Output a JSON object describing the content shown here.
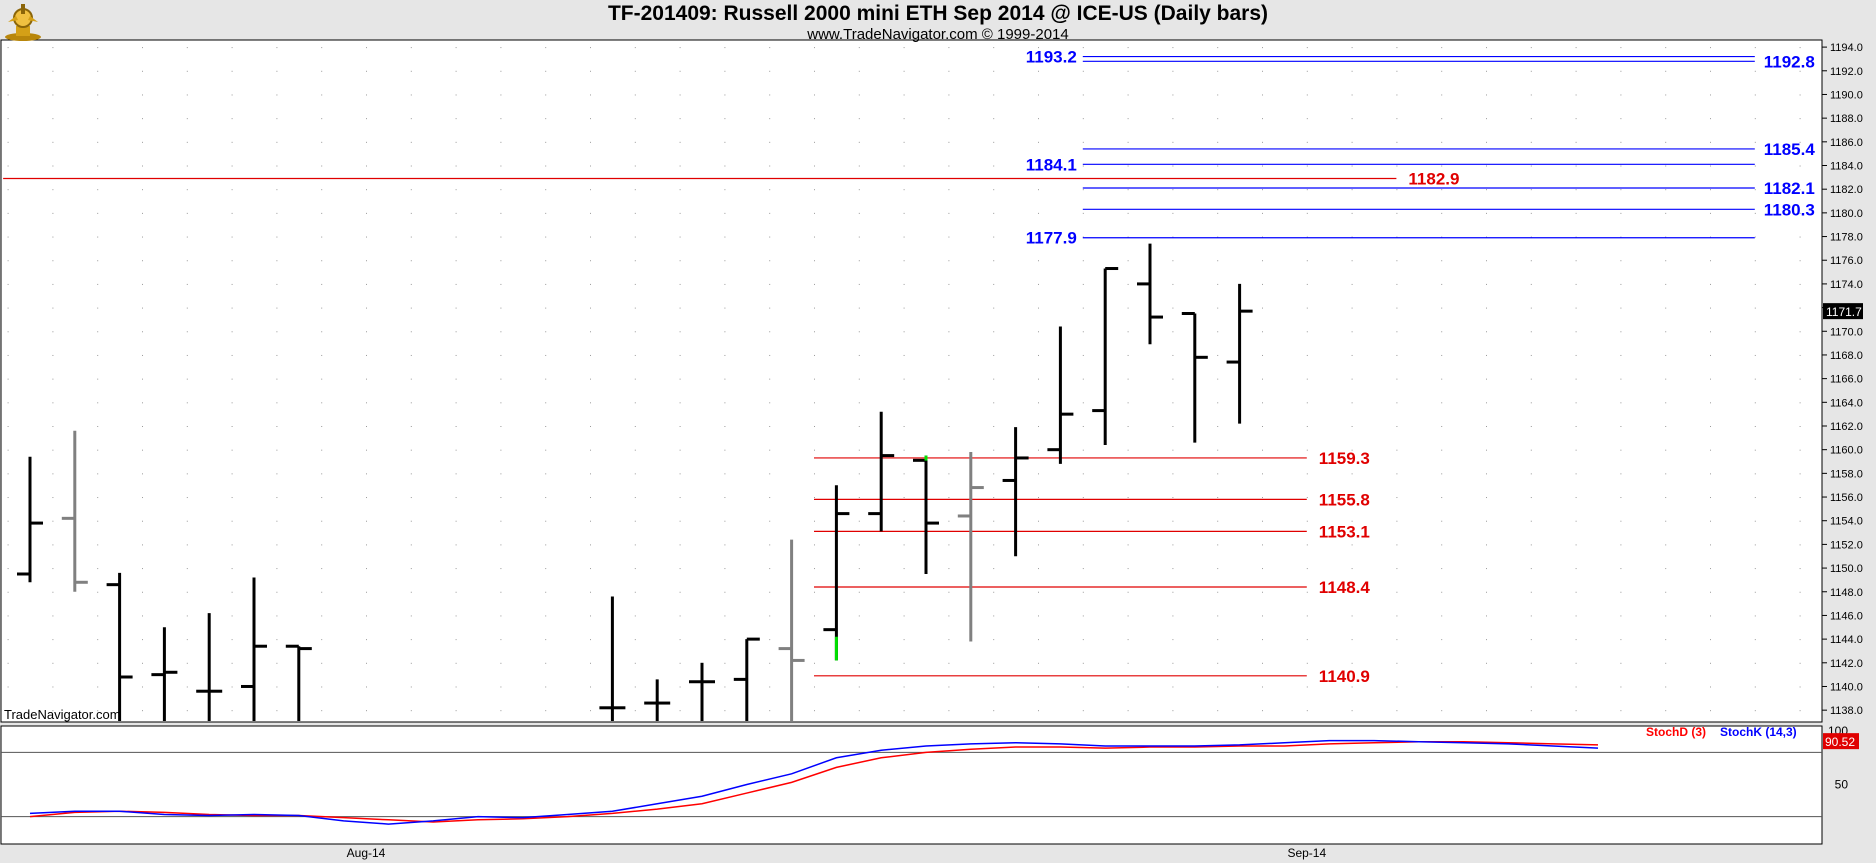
{
  "header": {
    "title": "TF-201409:  Russell 2000 mini ETH Sep 2014 @ ICE-US  (Daily bars)",
    "subtitle": "www.TradeNavigator.com © 1999-2014",
    "watermark": "TradeNavigator.com"
  },
  "colors": {
    "bar_up": "#000000",
    "bar_down": "#808080",
    "bar_green": "#00e000",
    "blue_level": "#0000ff",
    "red_level": "#e00000",
    "stoch_d": "#ff0000",
    "stoch_k": "#0000ff"
  },
  "chart_data": [
    {
      "type": "ohlc",
      "title": "TF-201409:  Russell 2000 mini ETH Sep 2014 @ ICE-US  (Daily bars)",
      "ylim": [
        1137,
        1194.6
      ],
      "y_ticks": [
        "1194.0",
        "1192.0",
        "1190.0",
        "1188.0",
        "1186.0",
        "1184.0",
        "1182.0",
        "1180.0",
        "1178.0",
        "1176.0",
        "1174.0",
        "1172.0",
        "1170.0",
        "1168.0",
        "1166.0",
        "1164.0",
        "1162.0",
        "1160.0",
        "1158.0",
        "1156.0",
        "1154.0",
        "1152.0",
        "1150.0",
        "1148.0",
        "1146.0",
        "1144.0",
        "1142.0",
        "1140.0",
        "1138.0"
      ],
      "x_labels": [
        {
          "label": "Aug-14",
          "bar_index": 7.5
        },
        {
          "label": "Sep-14",
          "bar_index": 28.5
        }
      ],
      "last_price": "1171.7",
      "bars": [
        {
          "o": 1149.5,
          "h": 1159.4,
          "l": 1148.8,
          "c": 1153.8,
          "color": "black"
        },
        {
          "o": 1154.2,
          "h": 1161.6,
          "l": 1148.0,
          "c": 1148.8,
          "color": "gray"
        },
        {
          "o": 1148.6,
          "h": 1149.6,
          "l": 1137.0,
          "c": 1140.8,
          "color": "black"
        },
        {
          "o": 1141.0,
          "h": 1145.0,
          "l": 1137.0,
          "c": 1141.2,
          "color": "black"
        },
        {
          "o": 1139.6,
          "h": 1146.2,
          "l": 1137.0,
          "c": 1139.6,
          "color": "black"
        },
        {
          "o": 1140.0,
          "h": 1149.2,
          "l": 1137.0,
          "c": 1143.4,
          "color": "black"
        },
        {
          "o": 1143.4,
          "h": 1143.4,
          "l": 1137.0,
          "c": 1143.2,
          "color": "black"
        },
        null,
        null,
        null,
        null,
        null,
        null,
        {
          "o": 1138.2,
          "h": 1147.6,
          "l": 1137.0,
          "c": 1138.2,
          "color": "black"
        },
        {
          "o": 1138.6,
          "h": 1140.6,
          "l": 1137.0,
          "c": 1138.6,
          "color": "black"
        },
        {
          "o": 1140.4,
          "h": 1142.0,
          "l": 1137.0,
          "c": 1140.4,
          "color": "black"
        },
        {
          "o": 1140.6,
          "h": 1144.0,
          "l": 1137.0,
          "c": 1144.0,
          "color": "black"
        },
        {
          "o": 1143.2,
          "h": 1152.4,
          "l": 1137.0,
          "c": 1142.2,
          "color": "gray"
        },
        {
          "o": 1144.8,
          "h": 1157.0,
          "l": 1142.2,
          "c": 1154.6,
          "color": "black",
          "green_tail": [
            1142.2,
            1144.2
          ]
        },
        {
          "o": 1154.6,
          "h": 1163.2,
          "l": 1153.1,
          "c": 1159.5,
          "color": "black"
        },
        {
          "o": 1159.1,
          "h": 1159.5,
          "l": 1149.5,
          "c": 1153.8,
          "color": "black",
          "green_tick": 1159.5
        },
        {
          "o": 1154.4,
          "h": 1159.8,
          "l": 1143.8,
          "c": 1156.8,
          "color": "gray"
        },
        {
          "o": 1157.4,
          "h": 1161.9,
          "l": 1151.0,
          "c": 1159.3,
          "color": "black"
        },
        {
          "o": 1160.0,
          "h": 1170.4,
          "l": 1158.8,
          "c": 1163.0,
          "color": "black"
        },
        {
          "o": 1163.3,
          "h": 1175.3,
          "l": 1160.4,
          "c": 1175.3,
          "color": "black"
        },
        {
          "o": 1174.0,
          "h": 1177.4,
          "l": 1168.9,
          "c": 1171.2,
          "color": "black"
        },
        {
          "o": 1171.5,
          "h": 1171.5,
          "l": 1160.6,
          "c": 1167.8,
          "color": "black"
        },
        {
          "o": 1167.4,
          "h": 1174.0,
          "l": 1162.2,
          "c": 1171.7,
          "color": "black"
        }
      ],
      "levels": [
        {
          "value": 1193.2,
          "label": "1193.2",
          "color": "blue",
          "from_bar": 23.5,
          "to_bar": 38.5,
          "label_pos": "left"
        },
        {
          "value": 1192.8,
          "label": "1192.8",
          "color": "blue",
          "from_bar": 23.5,
          "to_bar": 38.5,
          "label_pos": "right"
        },
        {
          "value": 1185.4,
          "label": "1185.4",
          "color": "blue",
          "from_bar": 23.5,
          "to_bar": 38.5,
          "label_pos": "right"
        },
        {
          "value": 1184.1,
          "label": "1184.1",
          "color": "blue",
          "from_bar": 23.5,
          "to_bar": 38.5,
          "label_pos": "left"
        },
        {
          "value": 1182.9,
          "label": "1182.9",
          "color": "red",
          "from_bar": -0.6,
          "to_bar": 30.5,
          "label_pos": "after"
        },
        {
          "value": 1182.1,
          "label": "1182.1",
          "color": "blue",
          "from_bar": 23.5,
          "to_bar": 38.5,
          "label_pos": "right"
        },
        {
          "value": 1180.3,
          "label": "1180.3",
          "color": "blue",
          "from_bar": 23.5,
          "to_bar": 38.5,
          "label_pos": "right"
        },
        {
          "value": 1177.9,
          "label": "1177.9",
          "color": "blue",
          "from_bar": 23.5,
          "to_bar": 38.5,
          "label_pos": "left"
        },
        {
          "value": 1159.3,
          "label": "1159.3",
          "color": "red",
          "from_bar": 17.5,
          "to_bar": 28.5,
          "label_pos": "after"
        },
        {
          "value": 1155.8,
          "label": "1155.8",
          "color": "red",
          "from_bar": 17.5,
          "to_bar": 28.5,
          "label_pos": "after"
        },
        {
          "value": 1153.1,
          "label": "1153.1",
          "color": "red",
          "from_bar": 17.5,
          "to_bar": 28.5,
          "label_pos": "after"
        },
        {
          "value": 1148.4,
          "label": "1148.4",
          "color": "red",
          "from_bar": 17.5,
          "to_bar": 28.5,
          "label_pos": "after"
        },
        {
          "value": 1140.9,
          "label": "1140.9",
          "color": "red",
          "from_bar": 17.5,
          "to_bar": 28.5,
          "label_pos": "after"
        }
      ]
    },
    {
      "type": "line",
      "ylim": [
        0,
        100
      ],
      "y_ticks": [
        "100",
        "50"
      ],
      "reference_lines": [
        80,
        20
      ],
      "last_value": "90.52",
      "series": [
        {
          "name": "StochD (3)",
          "color": "red",
          "values": [
            20,
            24,
            25,
            24,
            22,
            21,
            21,
            19,
            17,
            15,
            17,
            18,
            20,
            23,
            27,
            32,
            42,
            52,
            66,
            75,
            80,
            83,
            85,
            85,
            84,
            85,
            85,
            86,
            86,
            88,
            89,
            90,
            90,
            89,
            88,
            87
          ]
        },
        {
          "name": "StochK (14,3)",
          "color": "blue",
          "values": [
            23,
            25,
            25,
            22,
            21,
            22,
            21,
            16,
            13,
            16,
            20,
            19,
            22,
            25,
            32,
            39,
            50,
            60,
            75,
            82,
            86,
            88,
            89,
            88,
            86,
            86,
            86,
            87,
            89,
            91,
            91,
            90,
            89,
            88,
            86,
            84
          ]
        }
      ]
    }
  ]
}
